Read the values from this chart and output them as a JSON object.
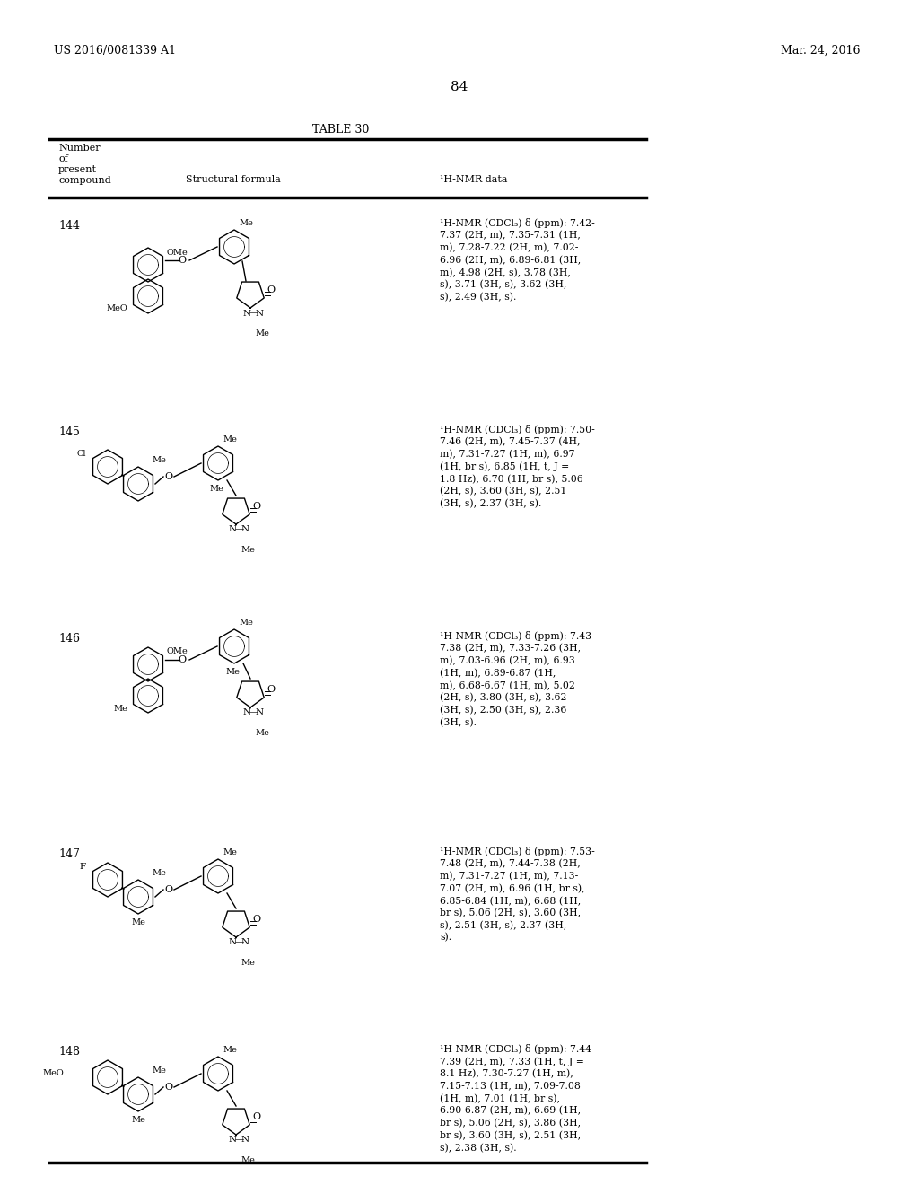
{
  "page_header_left": "US 2016/0081339 A1",
  "page_header_right": "Mar. 24, 2016",
  "page_number": "84",
  "table_title": "TABLE 30",
  "col_headers": [
    "Number\nof\npresent\ncompound",
    "Structural formula",
    "¹H-NMR data"
  ],
  "compounds": [
    {
      "number": "144",
      "nmr": "¹H-NMR (CDCl₃) δ (ppm): 7.42-7.37 (2H, m), 7.35-7.31 (1H, m), 7.28-7.22 (2H, m), 7.02-6.96 (2H, m), 6.89-6.81 (3H, m), 4.98 (2H, s), 3.78 (3H, s), 3.71 (3H, s), 3.62 (3H, s), 2.49 (3H, s)."
    },
    {
      "number": "145",
      "nmr": "¹H-NMR (CDCl₃) δ (ppm): 7.50-7.46 (2H, m), 7.45-7.37 (4H, m), 7.31-7.27 (1H, m), 6.97 (1H, br s), 6.85 (1H, t, J = 1.8 Hz), 6.70 (1H, br s), 5.06 (2H, s), 3.60 (3H, s), 2.51 (3H, s), 2.37 (3H, s)."
    },
    {
      "number": "146",
      "nmr": "¹H-NMR (CDCl₃) δ (ppm): 7.43-7.38 (2H, m), 7.33-7.26 (3H, m), 7.03-6.96 (2H, m), 6.93 (1H, m), 6.89-6.87 (1H, m), 6.68-6.67 (1H, m), 5.02 (2H, s), 3.80 (3H, s), 3.62 (3H, s), 2.50 (3H, s), 2.36 (3H, s)."
    },
    {
      "number": "147",
      "nmr": "¹H-NMR (CDCl₃) δ (ppm): 7.53-7.48 (2H, m), 7.44-7.38 (2H, m), 7.31-7.27 (1H, m), 7.13-7.07 (2H, m), 6.96 (1H, br s), 6.85-6.84 (1H, m), 6.68 (1H, br s), 5.06 (2H, s), 3.60 (3H, s), 2.51 (3H, s), 2.37 (3H, s)."
    },
    {
      "number": "148",
      "nmr": "¹H-NMR (CDCl₃) δ (ppm): 7.44-7.39 (2H, m), 7.33 (1H, t, J = 8.1 Hz), 7.30-7.27 (1H, m), 7.15-7.13 (1H, m), 7.09-7.08 (1H, m), 7.01 (1H, br s), 6.90-6.87 (2H, m), 6.69 (1H, br s), 5.06 (2H, s), 3.86 (3H, br s), 3.60 (3H, s), 2.51 (3H, s), 2.38 (3H, s)."
    }
  ],
  "background_color": "#ffffff",
  "text_color": "#000000",
  "line_color": "#000000"
}
